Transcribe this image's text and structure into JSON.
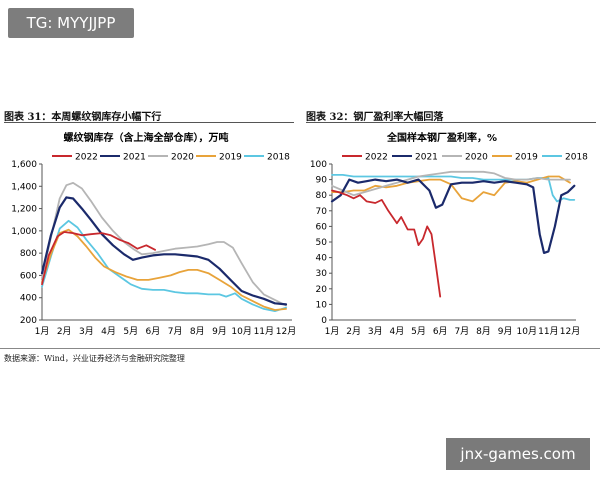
{
  "badge": {
    "text": "TG: MYYJJPP"
  },
  "watermark": {
    "text": "jnx-games.com"
  },
  "figures": {
    "left_title": "图表 31：本周螺纹钢库存小幅下行",
    "right_title": "图表 32：钢厂盈利率大幅回落"
  },
  "source_note": "数据来源：Wind，兴业证券经济与金融研究院整理",
  "chart_data": [
    {
      "type": "line",
      "title": "螺纹钢库存（含上海全部仓库），万吨",
      "categories": [
        "1月",
        "2月",
        "3月",
        "4月",
        "5月",
        "6月",
        "7月",
        "8月",
        "9月",
        "10月",
        "11月",
        "12月"
      ],
      "ylim": [
        200,
        1600
      ],
      "yticks": [
        "200",
        "400",
        "600",
        "800",
        "1,000",
        "1,200",
        "1,400",
        "1,600"
      ],
      "legend_position": "top",
      "series": [
        {
          "name": "2022",
          "color": "#c8282d",
          "x": [
            1,
            1.3,
            1.7,
            2,
            2.4,
            2.8,
            3.2,
            3.7,
            4.1,
            4.5,
            4.9,
            5.3,
            5.7,
            6.1
          ],
          "values": [
            520,
            780,
            950,
            990,
            980,
            960,
            970,
            980,
            960,
            920,
            890,
            840,
            870,
            830
          ]
        },
        {
          "name": "2021",
          "color": "#1b2a6b",
          "x": [
            1,
            1.4,
            1.8,
            2.1,
            2.4,
            2.8,
            3.2,
            3.7,
            4.2,
            4.7,
            5.1,
            5.5,
            6,
            6.5,
            7,
            7.5,
            8,
            8.5,
            9,
            9.5,
            10,
            10.5,
            11,
            11.5,
            12
          ],
          "values": [
            620,
            960,
            1210,
            1300,
            1290,
            1200,
            1100,
            970,
            870,
            790,
            740,
            760,
            780,
            790,
            790,
            780,
            770,
            740,
            660,
            560,
            460,
            420,
            390,
            350,
            340
          ]
        },
        {
          "name": "2020",
          "color": "#b5b5b5",
          "x": [
            1,
            1.4,
            1.8,
            2.1,
            2.4,
            2.8,
            3.2,
            3.7,
            4.2,
            4.7,
            5.1,
            5.5,
            6,
            6.5,
            7,
            7.5,
            8,
            8.5,
            8.9,
            9.2,
            9.6,
            10,
            10.5,
            11,
            11.5,
            12
          ],
          "values": [
            580,
            940,
            1290,
            1410,
            1430,
            1380,
            1270,
            1120,
            1000,
            900,
            840,
            790,
            800,
            820,
            840,
            850,
            860,
            880,
            900,
            900,
            850,
            710,
            540,
            430,
            380,
            330
          ]
        },
        {
          "name": "2019",
          "color": "#e8a33a",
          "x": [
            1,
            1.4,
            1.8,
            2.2,
            2.6,
            3,
            3.4,
            3.8,
            4.3,
            4.8,
            5.3,
            5.8,
            6.3,
            6.8,
            7.2,
            7.6,
            8,
            8.5,
            9,
            9.5,
            10,
            10.5,
            11,
            11.5,
            12
          ],
          "values": [
            540,
            790,
            980,
            1010,
            950,
            860,
            760,
            680,
            630,
            590,
            560,
            560,
            580,
            600,
            630,
            650,
            650,
            620,
            560,
            500,
            420,
            370,
            320,
            290,
            300
          ]
        },
        {
          "name": "2018",
          "color": "#5cc7e2",
          "x": [
            1,
            1.4,
            1.8,
            2.2,
            2.6,
            3,
            3.5,
            4,
            4.5,
            5,
            5.5,
            6,
            6.5,
            7,
            7.5,
            8,
            8.5,
            9,
            9.3,
            9.7,
            10,
            10.5,
            11,
            11.5,
            12
          ],
          "values": [
            500,
            770,
            1020,
            1090,
            1030,
            920,
            800,
            660,
            590,
            520,
            480,
            470,
            470,
            450,
            440,
            440,
            430,
            430,
            410,
            440,
            390,
            340,
            300,
            280,
            310
          ]
        }
      ]
    },
    {
      "type": "line",
      "title": "全国样本钢厂盈利率，%",
      "categories": [
        "1月",
        "2月",
        "3月",
        "4月",
        "5月",
        "6月",
        "7月",
        "8月",
        "9月",
        "10月",
        "11月",
        "12月"
      ],
      "ylim": [
        0,
        100
      ],
      "yticks": [
        "0",
        "10",
        "20",
        "30",
        "40",
        "50",
        "60",
        "70",
        "80",
        "90",
        "100"
      ],
      "legend_position": "top",
      "series": [
        {
          "name": "2022",
          "color": "#c8282d",
          "x": [
            1,
            1.3,
            1.7,
            2,
            2.3,
            2.6,
            3,
            3.3,
            3.6,
            4,
            4.2,
            4.5,
            4.8,
            5,
            5.2,
            5.4,
            5.6,
            5.8,
            6
          ],
          "values": [
            83,
            82,
            80,
            78,
            80,
            76,
            75,
            77,
            70,
            62,
            66,
            58,
            58,
            48,
            52,
            60,
            55,
            35,
            15
          ]
        },
        {
          "name": "2021",
          "color": "#1b2a6b",
          "x": [
            1,
            1.4,
            1.8,
            2.2,
            2.6,
            3,
            3.5,
            4,
            4.5,
            5,
            5.5,
            5.8,
            6.1,
            6.5,
            7,
            7.5,
            8,
            8.5,
            9,
            9.5,
            10,
            10.3,
            10.6,
            10.8,
            11,
            11.3,
            11.6,
            11.9,
            12.2
          ],
          "values": [
            76,
            80,
            90,
            88,
            89,
            90,
            89,
            90,
            88,
            90,
            83,
            72,
            74,
            87,
            88,
            88,
            89,
            88,
            89,
            88,
            87,
            85,
            55,
            43,
            44,
            60,
            80,
            82,
            86
          ]
        },
        {
          "name": "2020",
          "color": "#b5b5b5",
          "x": [
            1,
            1.5,
            2,
            2.5,
            3,
            3.5,
            4,
            4.5,
            5,
            5.5,
            6,
            6.5,
            7,
            7.5,
            8,
            8.5,
            9,
            9.5,
            10,
            10.5,
            11,
            11.5,
            12
          ],
          "values": [
            86,
            83,
            80,
            82,
            84,
            86,
            88,
            90,
            92,
            93,
            94,
            95,
            95,
            95,
            95,
            94,
            91,
            90,
            90,
            91,
            90,
            90,
            90
          ]
        },
        {
          "name": "2019",
          "color": "#e8a33a",
          "x": [
            1,
            1.5,
            2,
            2.5,
            3,
            3.5,
            4,
            4.5,
            5,
            5.5,
            6,
            6.5,
            7,
            7.5,
            8,
            8.5,
            9,
            9.5,
            10,
            10.5,
            11,
            11.5,
            12
          ],
          "values": [
            82,
            82,
            83,
            83,
            86,
            85,
            86,
            88,
            89,
            90,
            90,
            87,
            78,
            76,
            82,
            80,
            88,
            89,
            88,
            90,
            92,
            92,
            88
          ]
        },
        {
          "name": "2018",
          "color": "#5cc7e2",
          "x": [
            1,
            1.5,
            2,
            2.5,
            3,
            3.5,
            4,
            4.5,
            5,
            5.5,
            6,
            6.5,
            7,
            7.5,
            8,
            8.5,
            9,
            9.5,
            10,
            10.5,
            11,
            11.2,
            11.4,
            11.7,
            12,
            12.2
          ],
          "values": [
            93,
            93,
            92,
            92,
            92,
            92,
            92,
            92,
            92,
            92,
            92,
            92,
            91,
            91,
            90,
            90,
            90,
            90,
            90,
            91,
            91,
            80,
            76,
            78,
            77,
            77
          ]
        }
      ]
    }
  ]
}
